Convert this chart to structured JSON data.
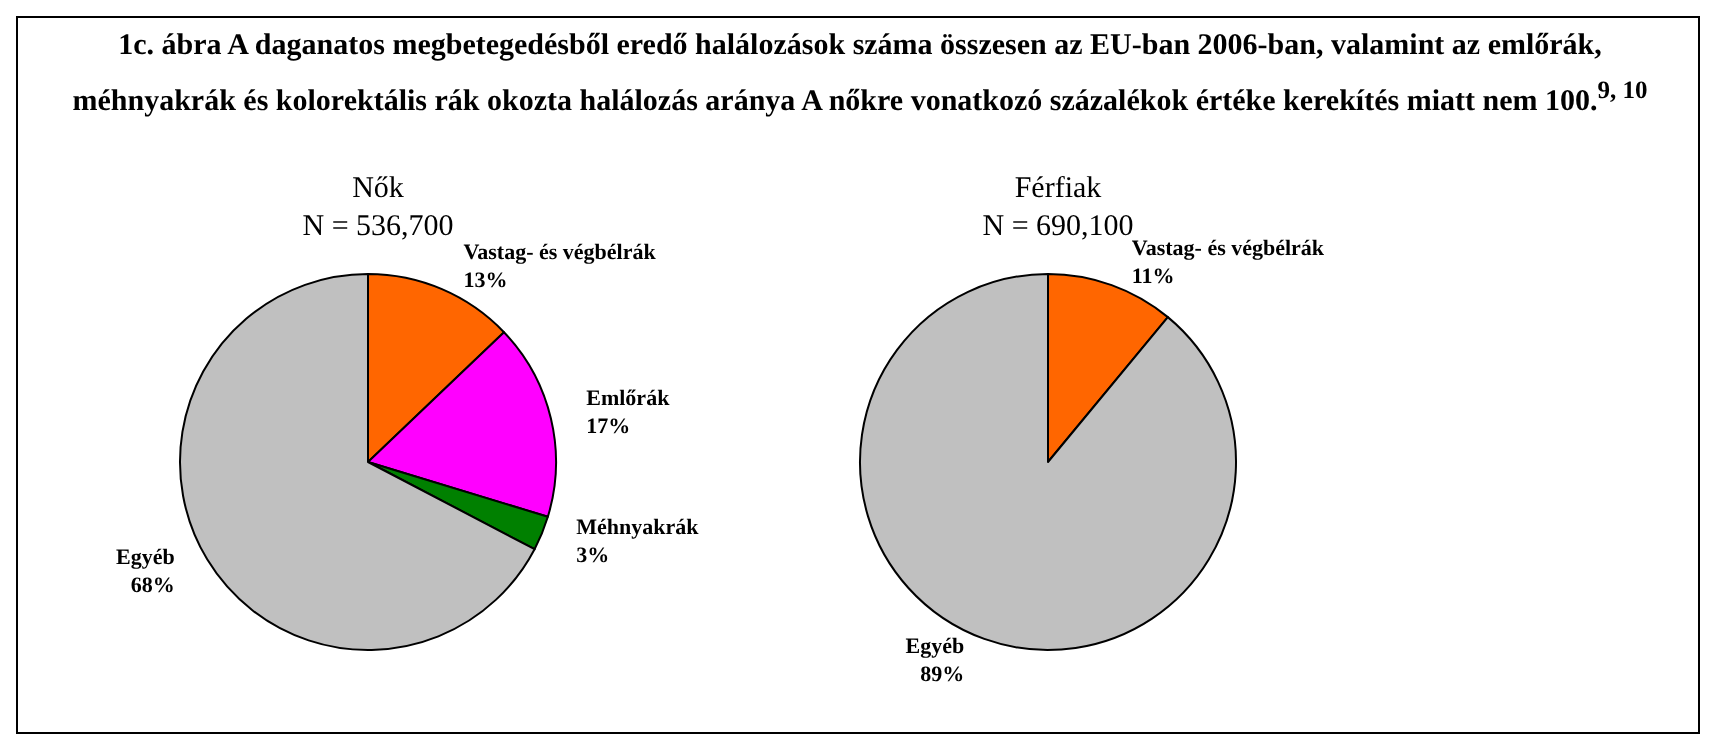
{
  "chart_data": [
    {
      "type": "pie",
      "annotations": [
        "1c. ábra A daganatos megbetegedésből eredő halálozások száma összesen az EU-ban 2006-ban, valamint az emlőrák, méhnyakrák és kolorektális rák okozta halálozás aránya A nőkre vonatkozó százalékok értéke kerekítés miatt nem 100.$^{9, 10}$"
      ],
      "title": "Nők",
      "subtitle": "N = 536,700",
      "categories": [
        "Vastag- és végbélrák",
        "Emlőrák",
        "Méhnyakrák",
        "Egyéb"
      ],
      "values": [
        13,
        17,
        3,
        68
      ],
      "value_labels": [
        "13%",
        "17%",
        "3%",
        "68%"
      ],
      "colors": [
        "#ff6600",
        "#ff00ff",
        "#008000",
        "#c0c0c0"
      ]
    },
    {
      "type": "pie",
      "title": "Férfiak",
      "subtitle": "N = 690,100",
      "categories": [
        "Vastag- és végbélrák",
        "Egyéb"
      ],
      "values": [
        11,
        89
      ],
      "value_labels": [
        "11%",
        "89%"
      ],
      "colors": [
        "#ff6600",
        "#c0c0c0"
      ]
    }
  ]
}
